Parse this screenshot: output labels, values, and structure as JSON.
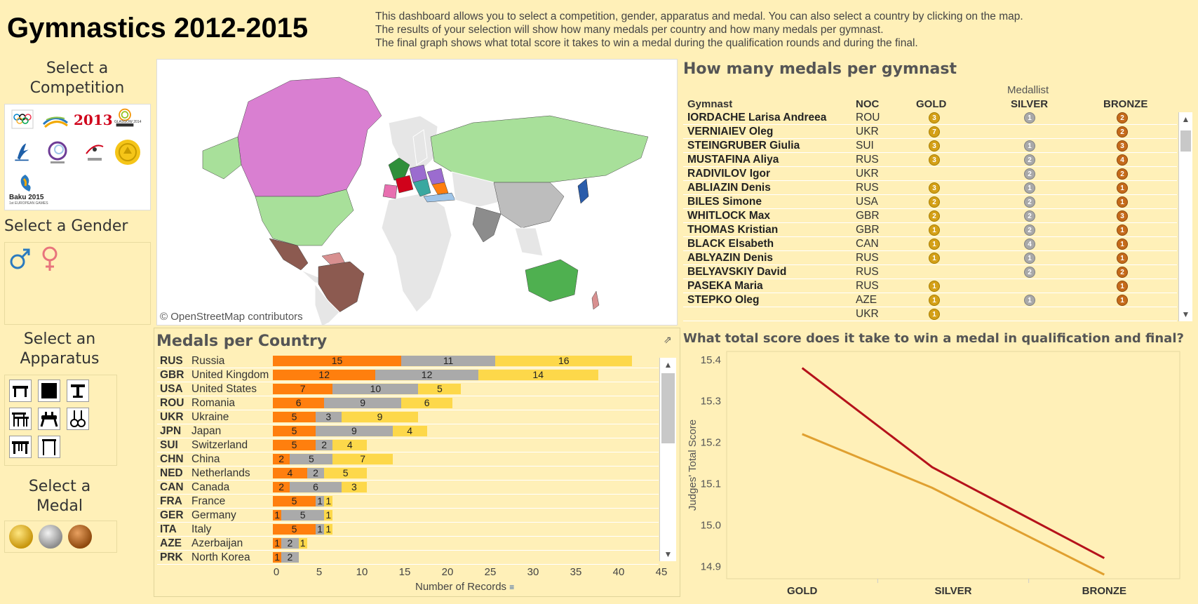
{
  "title": "Gymnastics 2012-2015",
  "description": [
    "This dashboard allows you to select a competition, gender, apparatus and medal. You can also select a country by clicking on the map.",
    "The results of your selection will show how many medals per country and how many medals per gymnast.",
    "The final graph shows what total score it takes to win a medal during the qualification rounds and during the final."
  ],
  "filters": {
    "competition_title": "Select a Competition",
    "gender_title": "Select a Gender",
    "apparatus_title": "Select an Apparatus",
    "medal_title": "Select a Medal",
    "competition_logos": [
      "London 2012 Olympics",
      "World Championships 2014",
      "2013",
      "Glasgow 2014",
      "Gymnastics Federation",
      "Glasgow World Cup 2014",
      "European Championships",
      "Gold Emblem",
      "Baku 2015 European Games"
    ],
    "baku_label_1": "Baku 2015",
    "baku_label_2": "1st EUROPEAN GAMES",
    "glasgow_label": "GLASGOW 2014",
    "year_2013": "2013",
    "gender_icons": [
      "male-icon",
      "female-icon"
    ],
    "apparatus_icons": [
      "vault-icon",
      "floor-icon",
      "beam-icon",
      "parallel-bars-icon",
      "pommel-horse-icon",
      "rings-icon",
      "table-icon",
      "high-bar-icon"
    ],
    "medal_icons": [
      "gold-medal-icon",
      "silver-medal-icon",
      "bronze-medal-icon"
    ],
    "colors": {
      "gold": "#d4a017",
      "silver": "#a9a9a9",
      "bronze": "#c46a1a"
    }
  },
  "map": {
    "credit": "© OpenStreetMap contributors",
    "colors": {
      "russia": "#a8e09a",
      "canada": "#d97fd1",
      "usa": "#a8e09a",
      "brazil": "#8c5a50",
      "australia": "#4fb050",
      "china": "#bdbdbd",
      "india": "#8c8c8c",
      "japan": "#2a5caa",
      "unselected": "#e8e8e8"
    }
  },
  "gymnasts": {
    "title": "How many medals per gymnast",
    "header_group": "Medallist",
    "columns": [
      "Gymnast",
      "NOC",
      "GOLD",
      "SILVER",
      "BRONZE"
    ],
    "rows": [
      {
        "name": "IORDACHE Larisa Andreea",
        "noc": "ROU",
        "gold": "3",
        "silver": "1",
        "bronze": "2"
      },
      {
        "name": "VERNIAIEV Oleg",
        "noc": "UKR",
        "gold": "7",
        "silver": "",
        "bronze": "2"
      },
      {
        "name": "STEINGRUBER Giulia",
        "noc": "SUI",
        "gold": "3",
        "silver": "1",
        "bronze": "3"
      },
      {
        "name": "MUSTAFINA Aliya",
        "noc": "RUS",
        "gold": "3",
        "silver": "2",
        "bronze": "4"
      },
      {
        "name": "RADIVILOV Igor",
        "noc": "UKR",
        "gold": "",
        "silver": "2",
        "bronze": "2"
      },
      {
        "name": "ABLIAZIN Denis",
        "noc": "RUS",
        "gold": "3",
        "silver": "1",
        "bronze": "1"
      },
      {
        "name": "BILES Simone",
        "noc": "USA",
        "gold": "2",
        "silver": "2",
        "bronze": "1"
      },
      {
        "name": "WHITLOCK Max",
        "noc": "GBR",
        "gold": "2",
        "silver": "2",
        "bronze": "3"
      },
      {
        "name": "THOMAS Kristian",
        "noc": "GBR",
        "gold": "1",
        "silver": "2",
        "bronze": "1"
      },
      {
        "name": "BLACK Elsabeth",
        "noc": "CAN",
        "gold": "1",
        "silver": "4",
        "bronze": "1"
      },
      {
        "name": "ABLYAZIN Denis",
        "noc": "RUS",
        "gold": "1",
        "silver": "1",
        "bronze": "1"
      },
      {
        "name": "BELYAVSKIY David",
        "noc": "RUS",
        "gold": "",
        "silver": "2",
        "bronze": "2"
      },
      {
        "name": "PASEKA Maria",
        "noc": "RUS",
        "gold": "1",
        "silver": "",
        "bronze": "1"
      },
      {
        "name": "STEPKO Oleg",
        "noc": "AZE",
        "gold": "1",
        "silver": "1",
        "bronze": "1"
      },
      {
        "name": "",
        "noc": "UKR",
        "gold": "1",
        "silver": "",
        "bronze": ""
      }
    ]
  },
  "medals_per_country": {
    "title": "Medals per Country",
    "xlabel": "Number of Records",
    "x_ticks": [
      "0",
      "5",
      "10",
      "15",
      "20",
      "25",
      "30",
      "35",
      "40",
      "45"
    ],
    "rows": [
      {
        "code": "RUS",
        "name": "Russia",
        "gold": 15,
        "silver": 11,
        "bronze": 16
      },
      {
        "code": "GBR",
        "name": "United Kingdom",
        "gold": 12,
        "silver": 12,
        "bronze": 14
      },
      {
        "code": "USA",
        "name": "United States",
        "gold": 7,
        "silver": 10,
        "bronze": 5
      },
      {
        "code": "ROU",
        "name": "Romania",
        "gold": 6,
        "silver": 9,
        "bronze": 6
      },
      {
        "code": "UKR",
        "name": "Ukraine",
        "gold": 5,
        "silver": 3,
        "bronze": 9
      },
      {
        "code": "JPN",
        "name": "Japan",
        "gold": 5,
        "silver": 9,
        "bronze": 4
      },
      {
        "code": "SUI",
        "name": "Switzerland",
        "gold": 5,
        "silver": 2,
        "bronze": 4
      },
      {
        "code": "CHN",
        "name": "China",
        "gold": 2,
        "silver": 5,
        "bronze": 7
      },
      {
        "code": "NED",
        "name": "Netherlands",
        "gold": 4,
        "silver": 2,
        "bronze": 5
      },
      {
        "code": "CAN",
        "name": "Canada",
        "gold": 2,
        "silver": 6,
        "bronze": 3
      },
      {
        "code": "FRA",
        "name": "France",
        "gold": 5,
        "silver": 1,
        "bronze": 1
      },
      {
        "code": "GER",
        "name": "Germany",
        "gold": 1,
        "silver": 5,
        "bronze": 1
      },
      {
        "code": "ITA",
        "name": "Italy",
        "gold": 5,
        "silver": 1,
        "bronze": 1
      },
      {
        "code": "AZE",
        "name": "Azerbaijan",
        "gold": 1,
        "silver": 2,
        "bronze": 1
      },
      {
        "code": "PRK",
        "name": "North Korea",
        "gold": 1,
        "silver": 2,
        "bronze": 0
      }
    ],
    "colors": {
      "gold": "#ff7f0e",
      "silver": "#aaaaaa",
      "bronze": "#fdd84a"
    }
  },
  "chart_data": {
    "type": "line",
    "title": "What total score does it take to win a medal in qualification and final?",
    "ylabel": "Judges' Total Score",
    "categories": [
      "GOLD",
      "SILVER",
      "BRONZE"
    ],
    "ylim": [
      14.87,
      15.42
    ],
    "y_ticks": [
      "15.4",
      "15.3",
      "15.2",
      "15.1",
      "15.0",
      "14.9"
    ],
    "series": [
      {
        "color": "#b5121b",
        "values": [
          15.38,
          15.14,
          14.92
        ]
      },
      {
        "color": "#e0a030",
        "values": [
          15.22,
          15.09,
          14.88
        ]
      }
    ]
  }
}
